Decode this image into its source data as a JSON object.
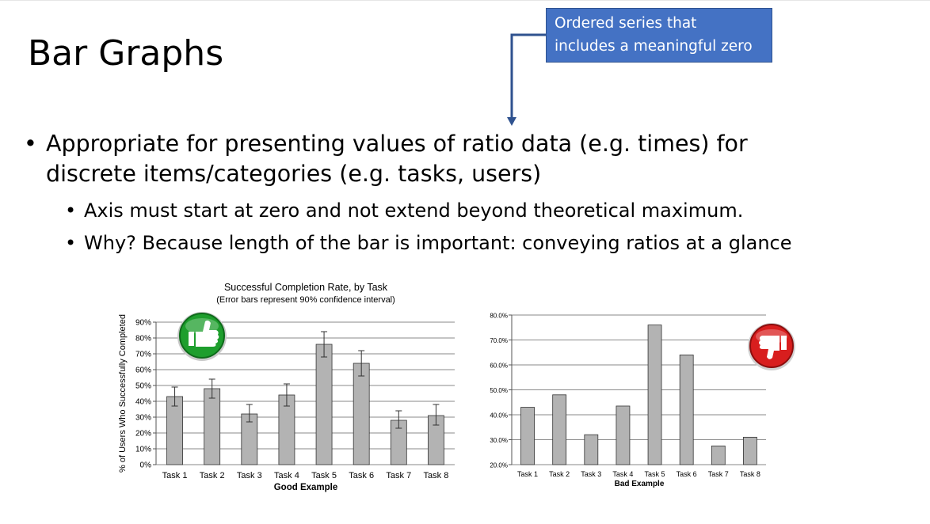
{
  "slide": {
    "title": "Bar Graphs",
    "callout": {
      "lines": [
        "Ordered series that",
        "includes a meaningful zero"
      ],
      "color": "#4472c4"
    },
    "bullets": [
      {
        "text_lines": [
          "Appropriate for presenting values of ratio data (e.g. times) for",
          "discrete items/categories (e.g. tasks, users)"
        ],
        "sub": [
          "Axis must start at zero and not extend beyond theoretical maximum.",
          "Why? Because length of the bar is important: conveying ratios at a glance"
        ]
      }
    ]
  },
  "icons": {
    "good": "thumbs-up-icon",
    "bad": "thumbs-down-icon",
    "good_color": "#1e9e2d",
    "bad_color": "#d81e1e"
  },
  "chart_data": [
    {
      "type": "bar",
      "title": "Successful Completion Rate, by Task",
      "subtitle": "(Error bars represent 90% confidence interval)",
      "xlabel": "Good Example",
      "ylabel": "% of Users Who Successfully Completed",
      "categories": [
        "Task 1",
        "Task 2",
        "Task 3",
        "Task 4",
        "Task 5",
        "Task 6",
        "Task 7",
        "Task 8"
      ],
      "values": [
        43,
        48,
        32,
        44,
        76,
        64,
        28,
        31
      ],
      "error_low": [
        37,
        42,
        27,
        37,
        68,
        56,
        23,
        25
      ],
      "error_high": [
        49,
        54,
        38,
        51,
        84,
        72,
        34,
        38
      ],
      "ylim": [
        0,
        90
      ],
      "yticks": [
        0,
        10,
        20,
        30,
        40,
        50,
        60,
        70,
        80,
        90
      ],
      "ytick_labels": [
        "0%",
        "10%",
        "20%",
        "30%",
        "40%",
        "50%",
        "60%",
        "70%",
        "80%",
        "90%"
      ],
      "grid": true,
      "bar_color": "#b3b3b3"
    },
    {
      "type": "bar",
      "title": "",
      "xlabel": "Bad Example",
      "ylabel": "",
      "categories": [
        "Task 1",
        "Task 2",
        "Task 3",
        "Task 4",
        "Task 5",
        "Task 6",
        "Task 7",
        "Task 8"
      ],
      "values": [
        43,
        48,
        32,
        43.5,
        76,
        64,
        27.5,
        31
      ],
      "ylim": [
        20,
        80
      ],
      "yticks": [
        20,
        30,
        40,
        50,
        60,
        70,
        80
      ],
      "ytick_labels": [
        "20.0%",
        "30.0%",
        "40.0%",
        "50.0%",
        "60.0%",
        "70.0%",
        "80.0%"
      ],
      "grid": true,
      "bar_color": "#b3b3b3"
    }
  ]
}
